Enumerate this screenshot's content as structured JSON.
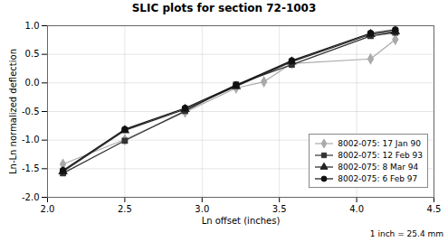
{
  "chart_data": {
    "type": "line",
    "title": "SLIC plots for section 72-1003",
    "xlabel": "Ln offset (inches)",
    "ylabel": "Ln-Ln normalized deflection",
    "footnote": "1 inch = 25.4 mm",
    "xlim": [
      2.0,
      4.5
    ],
    "ylim": [
      -2.0,
      1.0
    ],
    "xticks": [
      {
        "value": 2.0,
        "label": "2.0"
      },
      2.5,
      {
        "value": 3.0,
        "label": "3.0"
      },
      3.5,
      {
        "value": 4.0,
        "label": "4.0"
      },
      4.5
    ],
    "yticks": [
      {
        "value": -2.0,
        "label": "-2.0"
      },
      -1.5,
      {
        "value": -1.0,
        "label": "-1.0"
      },
      -0.5,
      {
        "value": 0.0,
        "label": "0.0"
      },
      0.5,
      {
        "value": 1.0,
        "label": "1.0"
      }
    ],
    "grid": true,
    "legend": "lower right",
    "series": [
      {
        "name": "8002-075: 17 Jan 90",
        "color": "#aaaaaa",
        "marker": "diamond",
        "x": [
          2.1,
          2.5,
          2.89,
          3.22,
          3.4,
          3.58,
          4.09,
          4.25
        ],
        "values": [
          -1.42,
          -0.99,
          -0.51,
          -0.09,
          0.02,
          0.34,
          0.42,
          0.76
        ]
      },
      {
        "name": "8002-075: 12 Feb 93",
        "color": "#333333",
        "marker": "square",
        "x": [
          2.1,
          2.5,
          2.89,
          3.22,
          3.58,
          4.09,
          4.25
        ],
        "values": [
          -1.58,
          -1.01,
          -0.49,
          -0.03,
          0.32,
          0.82,
          0.88
        ]
      },
      {
        "name": "8002-075: 8 Mar 94",
        "color": "#222222",
        "marker": "triangle",
        "x": [
          2.1,
          2.5,
          2.89,
          3.22,
          3.58,
          4.09,
          4.25
        ],
        "values": [
          -1.55,
          -0.83,
          -0.46,
          -0.06,
          0.37,
          0.85,
          0.9
        ]
      },
      {
        "name": "8002-075: 6 Feb 97",
        "color": "#111111",
        "marker": "circle",
        "x": [
          2.1,
          2.5,
          2.89,
          3.22,
          3.58,
          4.09,
          4.25
        ],
        "values": [
          -1.53,
          -0.81,
          -0.44,
          -0.04,
          0.39,
          0.87,
          0.93
        ]
      }
    ]
  }
}
